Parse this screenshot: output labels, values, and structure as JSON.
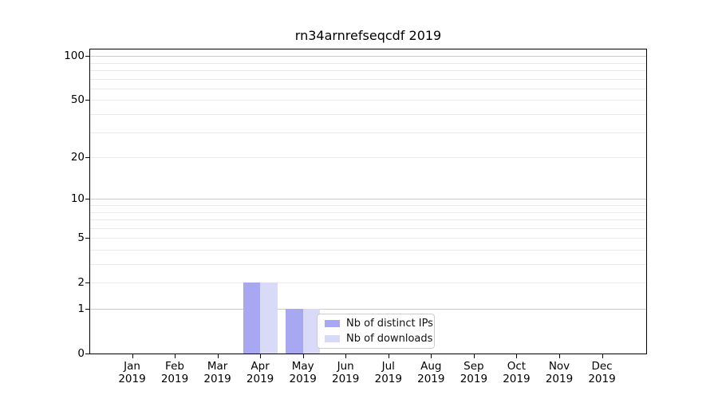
{
  "chart_data": {
    "type": "bar",
    "title": "rn34arnrefseqcdf 2019",
    "xlabel": "",
    "ylabel": "",
    "categories": [
      "Jan 2019",
      "Feb 2019",
      "Mar 2019",
      "Apr 2019",
      "May 2019",
      "Jun 2019",
      "Jul 2019",
      "Aug 2019",
      "Sep 2019",
      "Oct 2019",
      "Nov 2019",
      "Dec 2019"
    ],
    "series": [
      {
        "name": "Nb of distinct IPs",
        "color": "#a8a8f2",
        "values": [
          0,
          0,
          0,
          2,
          1,
          0,
          0,
          0,
          0,
          0,
          0,
          0
        ]
      },
      {
        "name": "Nb of downloads",
        "color": "#d9d9f8",
        "values": [
          0,
          0,
          0,
          2,
          1,
          0,
          0,
          0,
          0,
          0,
          0,
          0
        ]
      }
    ],
    "yscale": "log1p",
    "ylim": [
      0,
      111
    ],
    "yticks": [
      0,
      1,
      2,
      5,
      10,
      20,
      50,
      100
    ],
    "decade_gridlines": [
      1,
      10,
      100
    ],
    "minor_gridlines": [
      2,
      3,
      4,
      5,
      6,
      7,
      8,
      9,
      20,
      30,
      40,
      50,
      60,
      70,
      80,
      90
    ],
    "grid": "horizontal",
    "legend_position": "inside lower center-right"
  },
  "colors": {
    "background": "#ffffff",
    "spine": "#000000",
    "grid_decade": "#c9c9c9",
    "grid_minor": "#e9e9e9",
    "legend_border": "#cccccc",
    "text": "#000000"
  }
}
